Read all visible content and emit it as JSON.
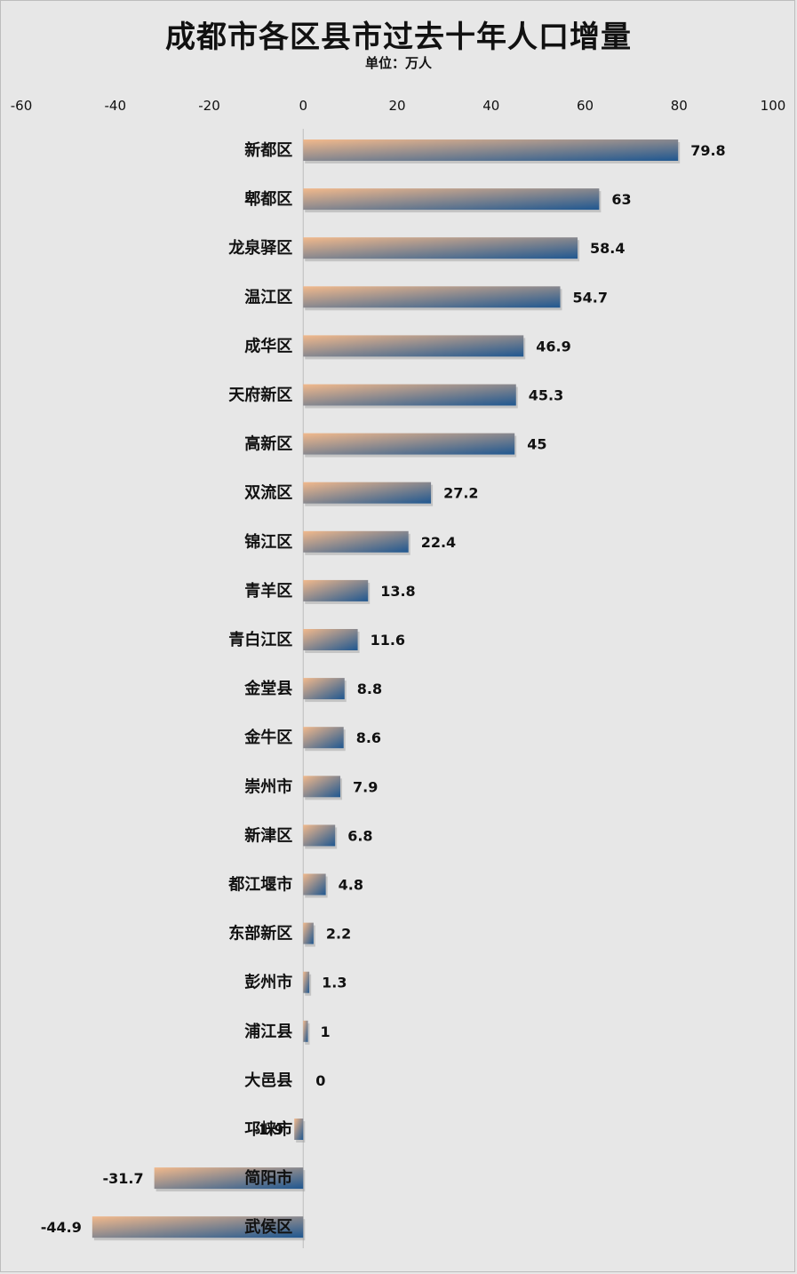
{
  "colors": {
    "background": "#e7e7e7",
    "bar_start": "#f2b98c",
    "bar_end": "#1f5790",
    "axis": "#bdbdbd"
  },
  "chart_data": {
    "type": "bar",
    "orientation": "horizontal",
    "title": "成都市各区县市过去十年人口增量",
    "subtitle": "单位：万人",
    "xlim": [
      -60,
      100
    ],
    "xticks": [
      "-60",
      "-40",
      "-20",
      "0",
      "20",
      "40",
      "60",
      "80",
      "100"
    ],
    "xtick_values": [
      -60,
      -40,
      -20,
      0,
      20,
      40,
      60,
      80,
      100
    ],
    "grid": false,
    "categories": [
      "新都区",
      "郫都区",
      "龙泉驿区",
      "温江区",
      "成华区",
      "天府新区",
      "高新区",
      "双流区",
      "锦江区",
      "青羊区",
      "青白江区",
      "金堂县",
      "金牛区",
      "崇州市",
      "新津区",
      "都江堰市",
      "东部新区",
      "彭州市",
      "浦江县",
      "大邑县",
      "邛崃市",
      "简阳市",
      "武侯区"
    ],
    "values": [
      79.8,
      63,
      58.4,
      54.7,
      46.9,
      45.3,
      45,
      27.2,
      22.4,
      13.8,
      11.6,
      8.8,
      8.6,
      7.9,
      6.8,
      4.8,
      2.2,
      1.3,
      1,
      0,
      -1.9,
      -31.7,
      -44.9
    ],
    "value_labels": [
      "79.8",
      "63",
      "58.4",
      "54.7",
      "46.9",
      "45.3",
      "45",
      "27.2",
      "22.4",
      "13.8",
      "11.6",
      "8.8",
      "8.6",
      "7.9",
      "6.8",
      "4.8",
      "2.2",
      "1.3",
      "1",
      "0",
      "-1.9",
      "-31.7",
      "-44.9"
    ]
  }
}
